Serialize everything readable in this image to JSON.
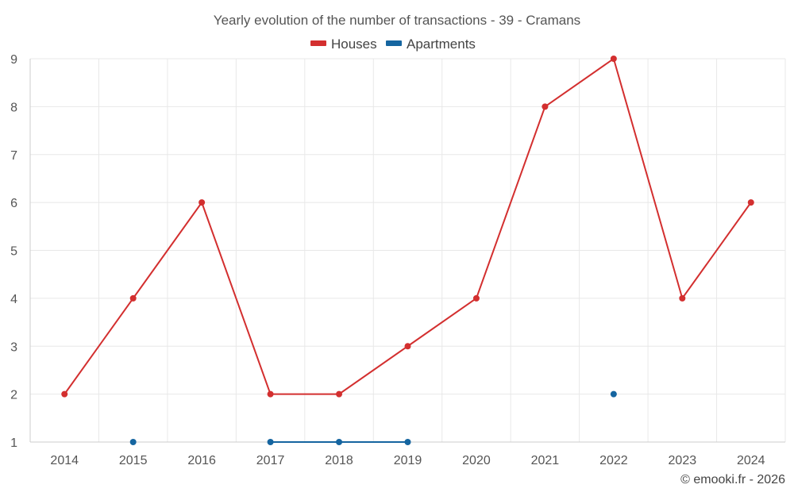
{
  "chart_data": {
    "type": "line",
    "title": "Yearly evolution of the number of transactions - 39 - Cramans",
    "categories": [
      "2014",
      "2015",
      "2016",
      "2017",
      "2018",
      "2019",
      "2020",
      "2021",
      "2022",
      "2023",
      "2024"
    ],
    "series": [
      {
        "name": "Houses",
        "color": "#d32f2f",
        "values": [
          2,
          4,
          6,
          2,
          2,
          3,
          4,
          8,
          9,
          4,
          6
        ]
      },
      {
        "name": "Apartments",
        "color": "#1565a0",
        "values": [
          null,
          1,
          null,
          1,
          1,
          1,
          null,
          null,
          2,
          null,
          null
        ]
      }
    ],
    "ylim": [
      1,
      9
    ],
    "yticks": [
      "1",
      "2",
      "3",
      "4",
      "5",
      "6",
      "7",
      "8",
      "9"
    ],
    "grid": true,
    "legend": "top-center"
  },
  "credit": "© emooki.fr - 2026"
}
